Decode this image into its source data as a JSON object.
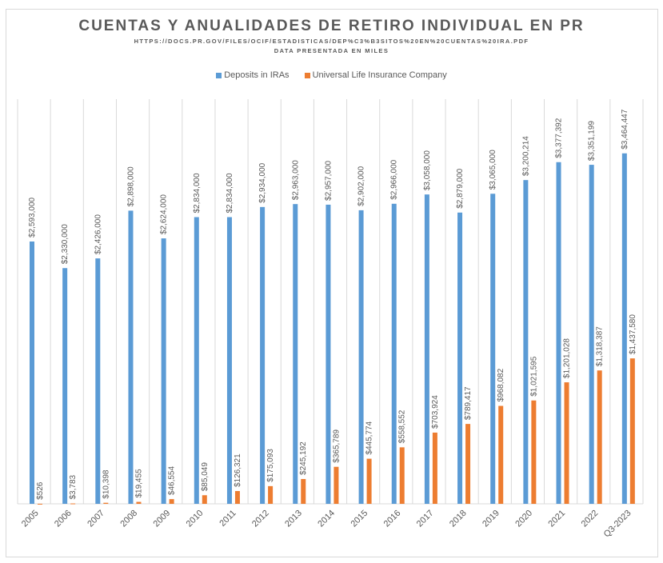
{
  "chart_data": {
    "type": "bar",
    "title": "CUENTAS Y ANUALIDADES DE RETIRO INDIVIDUAL EN PR",
    "subtitle": "HTTPS://DOCS.PR.GOV/FILES/OCIF/ESTADISTICAS/DEP%C3%B3SITOS%20EN%20CUENTAS%20IRA.PDF",
    "subtitle2": "DATA PRESENTADA EN MILES",
    "legend_position": "top",
    "grid": "vertical",
    "ylim": [
      0,
      4000000
    ],
    "categories": [
      "2005",
      "2006",
      "2007",
      "2008",
      "2009",
      "2010",
      "2011",
      "2012",
      "2013",
      "2014",
      "2015",
      "2016",
      "2017",
      "2018",
      "2019",
      "2020",
      "2021",
      "2022",
      "Q3-2023"
    ],
    "series": [
      {
        "name": "Deposits in IRAs",
        "color": "#5b9bd5",
        "values": [
          2593000,
          2330000,
          2426000,
          2898000,
          2624000,
          2834000,
          2834000,
          2934000,
          2963000,
          2957000,
          2902000,
          2966000,
          3058000,
          2879000,
          3065000,
          3200214,
          3377392,
          3351199,
          3464447
        ],
        "labels": [
          "$2,593,000",
          "$2,330,000",
          "$2,426,000",
          "$2,898,000",
          "$2,624,000",
          "$2,834,000",
          "$2,834,000",
          "$2,934,000",
          "$2,963,000",
          "$2,957,000",
          "$2,902,000",
          "$2,966,000",
          "$3,058,000",
          "$2,879,000",
          "$3,065,000",
          "$3,200,214",
          "$3,377,392",
          "$3,351,199",
          "$3,464,447"
        ]
      },
      {
        "name": "Universal Life Insurance Company",
        "color": "#ed7d31",
        "values": [
          526,
          3783,
          10398,
          19455,
          46554,
          85049,
          126321,
          175093,
          245192,
          365789,
          445774,
          558552,
          703924,
          789417,
          968082,
          1021595,
          1201028,
          1318387,
          1437580
        ],
        "labels": [
          "$526",
          "$3,783",
          "$10,398",
          "$19,455",
          "$46,554",
          "$85,049",
          "$126,321",
          "$175,093",
          "$245,192",
          "$365,789",
          "$445,774",
          "$558,552",
          "$703,924",
          "$789,417",
          "$968,082",
          "$1,021,595",
          "$1,201,028",
          "$1,318,387",
          "$1,437,580"
        ]
      }
    ]
  }
}
